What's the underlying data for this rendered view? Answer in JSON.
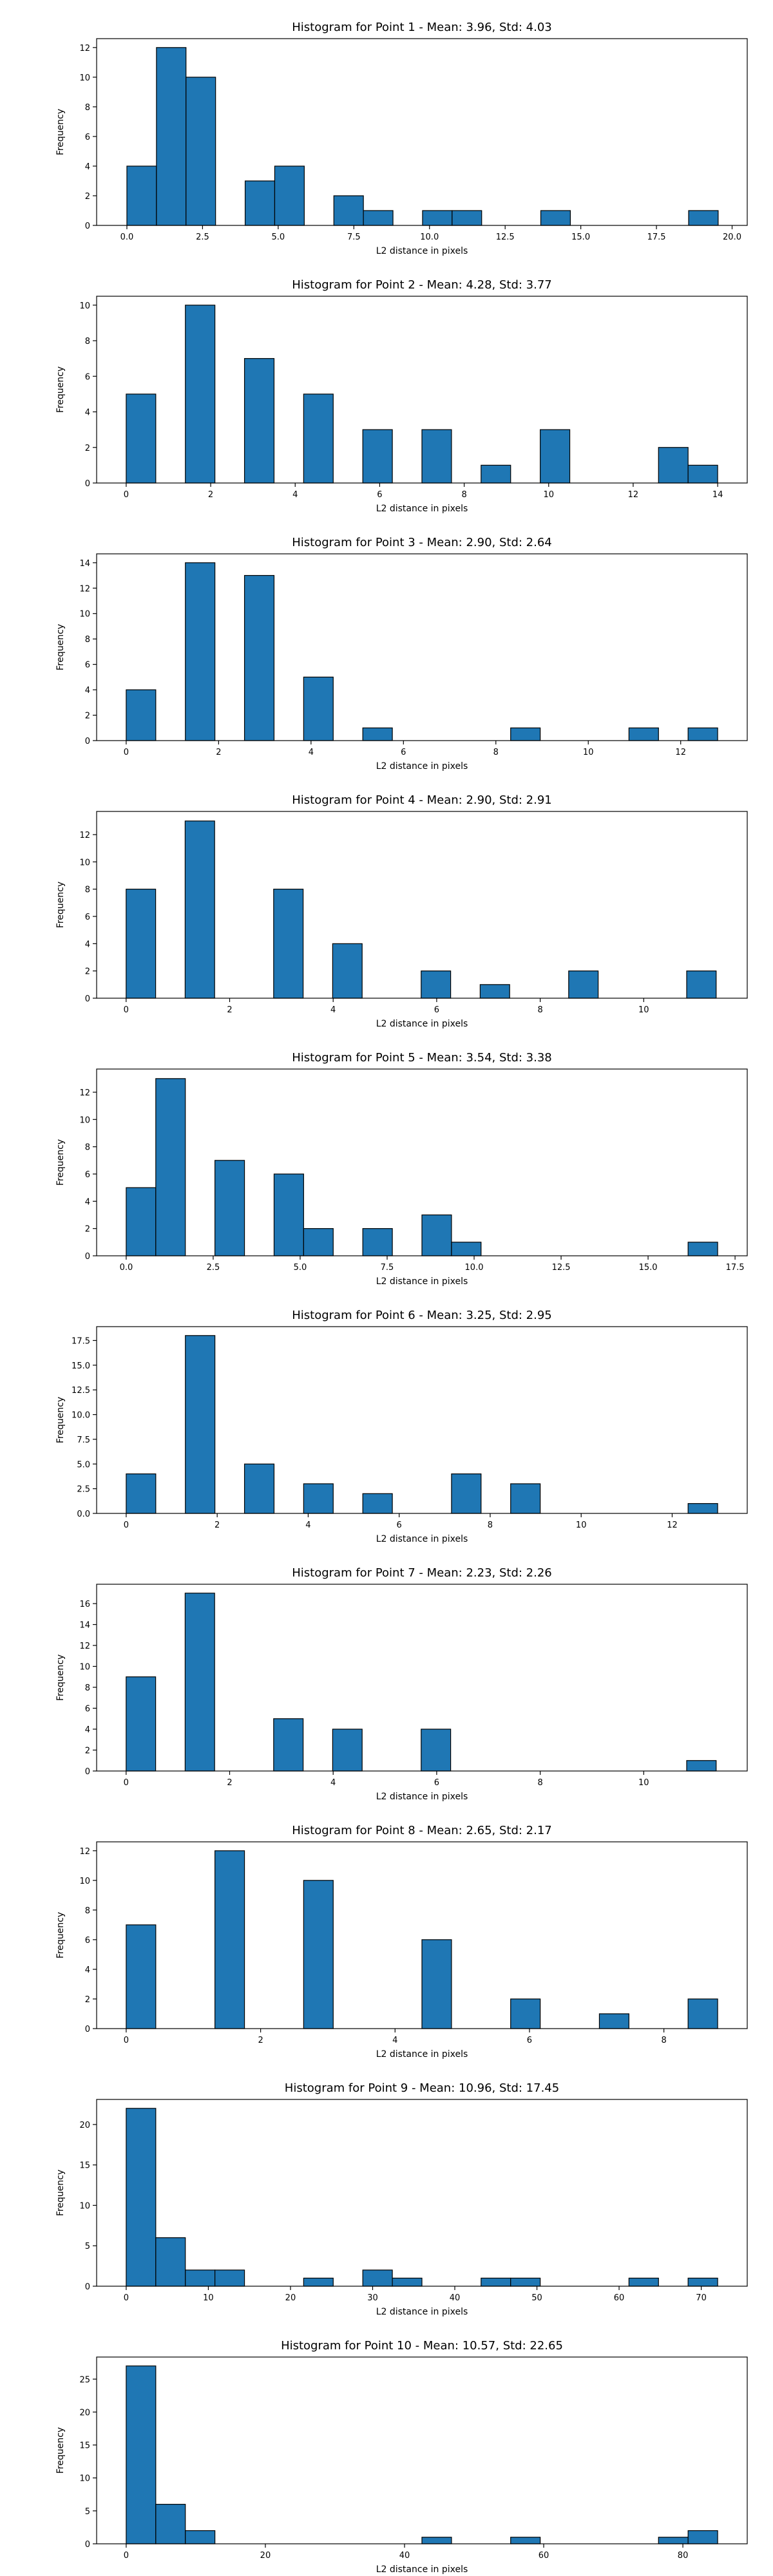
{
  "colors": {
    "bar_fill": "#1f77b4",
    "bar_edge": "#000000",
    "axis": "#000000",
    "background": "#ffffff"
  },
  "chart_data": [
    {
      "type": "bar",
      "title": "Histogram for Point 1 - Mean: 3.96, Std: 4.03",
      "xlabel": "L2 distance in pixels",
      "ylabel": "Frequency",
      "xlim": [
        -1.0,
        20.5
      ],
      "ylim": [
        0,
        12.6
      ],
      "xticks": [
        0.0,
        2.5,
        5.0,
        7.5,
        10.0,
        12.5,
        15.0,
        17.5,
        20.0
      ],
      "xtick_labels": [
        "0.0",
        "2.5",
        "5.0",
        "7.5",
        "10.0",
        "12.5",
        "15.0",
        "17.5",
        "20.0"
      ],
      "yticks": [
        0,
        2,
        4,
        6,
        8,
        10,
        12
      ],
      "ytick_labels": [
        "0",
        "2",
        "4",
        "6",
        "8",
        "10",
        "12"
      ],
      "bin_edges": [
        0.0,
        0.977,
        1.954,
        2.931,
        3.908,
        4.885,
        5.862,
        6.839,
        7.816,
        8.793,
        9.77,
        10.747,
        11.724,
        12.701,
        13.678,
        14.655,
        15.632,
        16.609,
        17.586,
        18.563,
        19.54
      ],
      "values": [
        4,
        12,
        10,
        0,
        3,
        4,
        0,
        2,
        1,
        0,
        1,
        1,
        0,
        0,
        1,
        0,
        0,
        0,
        0,
        1
      ],
      "grid": false
    },
    {
      "type": "bar",
      "title": "Histogram for Point 2 - Mean: 4.28, Std: 3.77",
      "xlabel": "L2 distance in pixels",
      "ylabel": "Frequency",
      "xlim": [
        -0.7,
        14.7
      ],
      "ylim": [
        0,
        10.5
      ],
      "xticks": [
        0,
        2,
        4,
        6,
        8,
        10,
        12,
        14
      ],
      "xtick_labels": [
        "0",
        "2",
        "4",
        "6",
        "8",
        "10",
        "12",
        "14"
      ],
      "yticks": [
        0,
        2,
        4,
        6,
        8,
        10
      ],
      "ytick_labels": [
        "0",
        "2",
        "4",
        "6",
        "8",
        "10"
      ],
      "bin_edges": [
        0.0,
        0.7,
        1.4,
        2.1,
        2.8,
        3.5,
        4.2,
        4.9,
        5.6,
        6.3,
        7.0,
        7.7,
        8.4,
        9.1,
        9.8,
        10.5,
        11.2,
        11.9,
        12.6,
        13.3,
        14.0
      ],
      "values": [
        5,
        0,
        10,
        0,
        7,
        0,
        5,
        0,
        3,
        0,
        3,
        0,
        1,
        0,
        3,
        0,
        0,
        0,
        2,
        1
      ],
      "grid": false
    },
    {
      "type": "bar",
      "title": "Histogram for Point 3 - Mean: 2.90, Std: 2.64",
      "xlabel": "L2 distance in pixels",
      "ylabel": "Frequency",
      "xlim": [
        -0.64,
        13.44
      ],
      "ylim": [
        0,
        14.7
      ],
      "xticks": [
        0,
        2,
        4,
        6,
        8,
        10,
        12
      ],
      "xtick_labels": [
        "0",
        "2",
        "4",
        "6",
        "8",
        "10",
        "12"
      ],
      "yticks": [
        0,
        2,
        4,
        6,
        8,
        10,
        12,
        14
      ],
      "ytick_labels": [
        "0",
        "2",
        "4",
        "6",
        "8",
        "10",
        "12",
        "14"
      ],
      "bin_edges": [
        0.0,
        0.64,
        1.28,
        1.92,
        2.56,
        3.2,
        3.84,
        4.48,
        5.12,
        5.76,
        6.4,
        7.04,
        7.68,
        8.32,
        8.96,
        9.6,
        10.24,
        10.88,
        11.52,
        12.16,
        12.8
      ],
      "values": [
        4,
        0,
        14,
        0,
        13,
        0,
        5,
        0,
        1,
        0,
        0,
        0,
        0,
        1,
        0,
        0,
        0,
        1,
        0,
        1
      ],
      "grid": false
    },
    {
      "type": "bar",
      "title": "Histogram for Point 4 - Mean: 2.90, Std: 2.91",
      "xlabel": "L2 distance in pixels",
      "ylabel": "Frequency",
      "xlim": [
        -0.57,
        12.0
      ],
      "ylim": [
        0,
        13.7
      ],
      "xticks": [
        0,
        2,
        4,
        6,
        8,
        10
      ],
      "xtick_labels": [
        "0",
        "2",
        "4",
        "6",
        "8",
        "10"
      ],
      "yticks": [
        0,
        2,
        4,
        6,
        8,
        10,
        12
      ],
      "ytick_labels": [
        "0",
        "2",
        "4",
        "6",
        "8",
        "10",
        "12"
      ],
      "bin_edges": [
        0.0,
        0.57,
        1.14,
        1.71,
        2.28,
        2.85,
        3.42,
        3.99,
        4.56,
        5.13,
        5.7,
        6.27,
        6.84,
        7.41,
        7.98,
        8.55,
        9.12,
        9.69,
        10.26,
        10.83,
        11.4
      ],
      "values": [
        8,
        0,
        13,
        0,
        0,
        8,
        0,
        4,
        0,
        0,
        2,
        0,
        1,
        0,
        0,
        2,
        0,
        0,
        0,
        2
      ],
      "grid": false
    },
    {
      "type": "bar",
      "title": "Histogram for Point 5 - Mean: 3.54, Std: 3.38",
      "xlabel": "L2 distance in pixels",
      "ylabel": "Frequency",
      "xlim": [
        -0.85,
        17.85
      ],
      "ylim": [
        0,
        13.7
      ],
      "xticks": [
        0.0,
        2.5,
        5.0,
        7.5,
        10.0,
        12.5,
        15.0,
        17.5
      ],
      "xtick_labels": [
        "0.0",
        "2.5",
        "5.0",
        "7.5",
        "10.0",
        "12.5",
        "15.0",
        "17.5"
      ],
      "yticks": [
        0,
        2,
        4,
        6,
        8,
        10,
        12
      ],
      "ytick_labels": [
        "0",
        "2",
        "4",
        "6",
        "8",
        "10",
        "12"
      ],
      "bin_edges": [
        0.0,
        0.85,
        1.7,
        2.55,
        3.4,
        4.25,
        5.1,
        5.95,
        6.8,
        7.65,
        8.5,
        9.35,
        10.2,
        11.05,
        11.9,
        12.75,
        13.6,
        14.45,
        15.3,
        16.15,
        17.0
      ],
      "values": [
        5,
        13,
        0,
        7,
        0,
        6,
        2,
        0,
        2,
        0,
        3,
        1,
        0,
        0,
        0,
        0,
        0,
        0,
        0,
        1
      ],
      "grid": false
    },
    {
      "type": "bar",
      "title": "Histogram for Point 6 - Mean: 3.25, Std: 2.95",
      "xlabel": "L2 distance in pixels",
      "ylabel": "Frequency",
      "xlim": [
        -0.65,
        13.65
      ],
      "ylim": [
        0,
        18.9
      ],
      "xticks": [
        0,
        2,
        4,
        6,
        8,
        10,
        12
      ],
      "xtick_labels": [
        "0",
        "2",
        "4",
        "6",
        "8",
        "10",
        "12"
      ],
      "yticks": [
        0.0,
        2.5,
        5.0,
        7.5,
        10.0,
        12.5,
        15.0,
        17.5
      ],
      "ytick_labels": [
        "0.0",
        "2.5",
        "5.0",
        "7.5",
        "10.0",
        "12.5",
        "15.0",
        "17.5"
      ],
      "bin_edges": [
        0.0,
        0.65,
        1.3,
        1.95,
        2.6,
        3.25,
        3.9,
        4.55,
        5.2,
        5.85,
        6.5,
        7.15,
        7.8,
        8.45,
        9.1,
        9.75,
        10.4,
        11.05,
        11.7,
        12.35,
        13.0
      ],
      "values": [
        4,
        0,
        18,
        0,
        5,
        0,
        3,
        0,
        2,
        0,
        0,
        4,
        0,
        3,
        0,
        0,
        0,
        0,
        0,
        1
      ],
      "grid": false
    },
    {
      "type": "bar",
      "title": "Histogram for Point 7 - Mean: 2.23, Std: 2.26",
      "xlabel": "L2 distance in pixels",
      "ylabel": "Frequency",
      "xlim": [
        -0.57,
        12.0
      ],
      "ylim": [
        0,
        17.85
      ],
      "xticks": [
        0,
        2,
        4,
        6,
        8,
        10
      ],
      "xtick_labels": [
        "0",
        "2",
        "4",
        "6",
        "8",
        "10"
      ],
      "yticks": [
        0,
        2,
        4,
        6,
        8,
        10,
        12,
        14,
        16
      ],
      "ytick_labels": [
        "0",
        "2",
        "4",
        "6",
        "8",
        "10",
        "12",
        "14",
        "16"
      ],
      "bin_edges": [
        0.0,
        0.57,
        1.14,
        1.71,
        2.28,
        2.85,
        3.42,
        3.99,
        4.56,
        5.13,
        5.7,
        6.27,
        6.84,
        7.41,
        7.98,
        8.55,
        9.12,
        9.69,
        10.26,
        10.83,
        11.4
      ],
      "values": [
        9,
        0,
        17,
        0,
        0,
        5,
        0,
        4,
        0,
        0,
        4,
        0,
        0,
        0,
        0,
        0,
        0,
        0,
        0,
        1
      ],
      "grid": false
    },
    {
      "type": "bar",
      "title": "Histogram for Point 8 - Mean: 2.65, Std: 2.17",
      "xlabel": "L2 distance in pixels",
      "ylabel": "Frequency",
      "xlim": [
        -0.44,
        9.24
      ],
      "ylim": [
        0,
        12.6
      ],
      "xticks": [
        0,
        2,
        4,
        6,
        8
      ],
      "xtick_labels": [
        "0",
        "2",
        "4",
        "6",
        "8"
      ],
      "yticks": [
        0,
        2,
        4,
        6,
        8,
        10,
        12
      ],
      "ytick_labels": [
        "0",
        "2",
        "4",
        "6",
        "8",
        "10",
        "12"
      ],
      "bin_edges": [
        0.0,
        0.44,
        0.88,
        1.32,
        1.76,
        2.2,
        2.64,
        3.08,
        3.52,
        3.96,
        4.4,
        4.84,
        5.28,
        5.72,
        6.16,
        6.6,
        7.04,
        7.48,
        7.92,
        8.36,
        8.8
      ],
      "values": [
        7,
        0,
        0,
        12,
        0,
        0,
        10,
        0,
        0,
        0,
        6,
        0,
        0,
        2,
        0,
        0,
        1,
        0,
        0,
        2
      ],
      "grid": false
    },
    {
      "type": "bar",
      "title": "Histogram for Point 9 - Mean: 10.96, Std: 17.45",
      "xlabel": "L2 distance in pixels",
      "ylabel": "Frequency",
      "xlim": [
        -3.6,
        75.6
      ],
      "ylim": [
        0,
        23.1
      ],
      "xticks": [
        0,
        10,
        20,
        30,
        40,
        50,
        60,
        70
      ],
      "xtick_labels": [
        "0",
        "10",
        "20",
        "30",
        "40",
        "50",
        "60",
        "70"
      ],
      "yticks": [
        0,
        5,
        10,
        15,
        20
      ],
      "ytick_labels": [
        "0",
        "5",
        "10",
        "15",
        "20"
      ],
      "bin_edges": [
        0.0,
        3.6,
        7.2,
        10.8,
        14.4,
        18.0,
        21.6,
        25.2,
        28.8,
        32.4,
        36.0,
        39.6,
        43.2,
        46.8,
        50.4,
        54.0,
        57.6,
        61.2,
        64.8,
        68.4,
        72.0
      ],
      "values": [
        22,
        6,
        2,
        2,
        0,
        0,
        1,
        0,
        2,
        1,
        0,
        0,
        1,
        1,
        0,
        0,
        0,
        1,
        0,
        1
      ],
      "grid": false
    },
    {
      "type": "bar",
      "title": "Histogram for Point 10 - Mean: 10.57, Std: 22.65",
      "xlabel": "L2 distance in pixels",
      "ylabel": "Frequency",
      "xlim": [
        -4.25,
        89.25
      ],
      "ylim": [
        0,
        28.35
      ],
      "xticks": [
        0,
        20,
        40,
        60,
        80
      ],
      "xtick_labels": [
        "0",
        "20",
        "40",
        "60",
        "80"
      ],
      "yticks": [
        0,
        5,
        10,
        15,
        20,
        25
      ],
      "ytick_labels": [
        "0",
        "5",
        "10",
        "15",
        "20",
        "25"
      ],
      "bin_edges": [
        0.0,
        4.25,
        8.5,
        12.75,
        17.0,
        21.25,
        25.5,
        29.75,
        34.0,
        38.25,
        42.5,
        46.75,
        51.0,
        55.25,
        59.5,
        63.75,
        68.0,
        72.25,
        76.5,
        80.75,
        85.0
      ],
      "values": [
        27,
        6,
        2,
        0,
        0,
        0,
        0,
        0,
        0,
        0,
        1,
        0,
        0,
        1,
        0,
        0,
        0,
        0,
        1,
        2
      ],
      "grid": false
    }
  ]
}
